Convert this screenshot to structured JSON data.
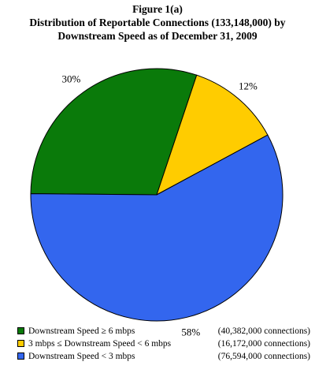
{
  "title": {
    "line1": "Figure 1(a)",
    "line2": "Distribution of Reportable Connections (133,148,000) by",
    "line3": "Downstream Speed as of December 31, 2009"
  },
  "chart_data": {
    "type": "pie",
    "title": "Distribution of Reportable Connections (133,148,000) by Downstream Speed as of December 31, 2009",
    "slices": [
      {
        "label": "Downstream Speed ≥ 6 mbps",
        "value": 30,
        "percent_label": "30%",
        "connections": "(40,382,000 connections)",
        "color": "#0a7a0a"
      },
      {
        "label": "3 mbps ≤ Downstream Speed < 6 mbps",
        "value": 12,
        "percent_label": "12%",
        "connections": "(16,172,000 connections)",
        "color": "#ffcc00"
      },
      {
        "label": "Downstream Speed < 3 mbps",
        "value": 58,
        "percent_label": "58%",
        "connections": "(76,594,000 connections)",
        "color": "#3366ee"
      }
    ],
    "legend_position": "bottom"
  }
}
